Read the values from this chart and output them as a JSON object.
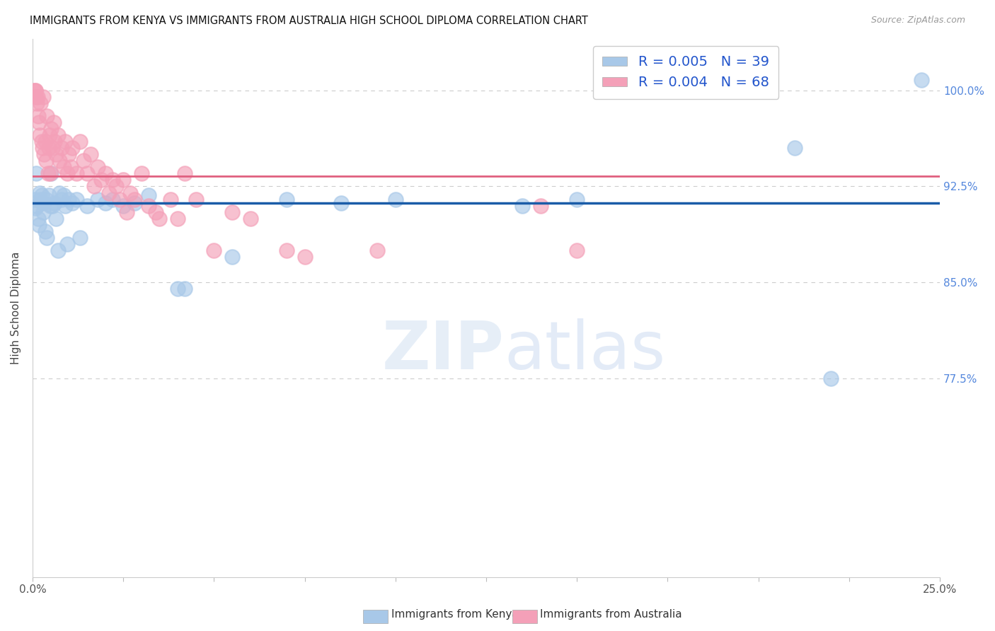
{
  "title": "IMMIGRANTS FROM KENYA VS IMMIGRANTS FROM AUSTRALIA HIGH SCHOOL DIPLOMA CORRELATION CHART",
  "source": "Source: ZipAtlas.com",
  "ylabel": "High School Diploma",
  "right_yticks": [
    77.5,
    85.0,
    92.5,
    100.0
  ],
  "xmin": 0.0,
  "xmax": 25.0,
  "ymin": 62.0,
  "ymax": 104.0,
  "kenya_color": "#a8c8e8",
  "australia_color": "#f4a0b8",
  "kenya_line_color": "#1a5ca8",
  "australia_line_color": "#e06080",
  "kenya_line_y": 91.2,
  "australia_line_y": 93.3,
  "watermark": "ZIPatlas",
  "grid_color": "#cccccc",
  "bg_color": "#ffffff",
  "kenya_points": [
    [
      0.05,
      91.5
    ],
    [
      0.07,
      90.8
    ],
    [
      0.1,
      93.5
    ],
    [
      0.12,
      91.0
    ],
    [
      0.15,
      90.0
    ],
    [
      0.18,
      89.5
    ],
    [
      0.2,
      92.0
    ],
    [
      0.22,
      91.5
    ],
    [
      0.25,
      91.8
    ],
    [
      0.28,
      91.2
    ],
    [
      0.3,
      90.5
    ],
    [
      0.35,
      89.0
    ],
    [
      0.38,
      91.5
    ],
    [
      0.4,
      88.5
    ],
    [
      0.45,
      91.8
    ],
    [
      0.48,
      91.0
    ],
    [
      0.5,
      93.5
    ],
    [
      0.55,
      91.0
    ],
    [
      0.6,
      91.2
    ],
    [
      0.65,
      90.0
    ],
    [
      0.7,
      87.5
    ],
    [
      0.75,
      92.0
    ],
    [
      0.8,
      91.5
    ],
    [
      0.85,
      91.8
    ],
    [
      0.9,
      91.0
    ],
    [
      0.95,
      88.0
    ],
    [
      1.0,
      91.5
    ],
    [
      1.1,
      91.2
    ],
    [
      1.2,
      91.5
    ],
    [
      1.3,
      88.5
    ],
    [
      1.5,
      91.0
    ],
    [
      1.8,
      91.5
    ],
    [
      2.0,
      91.2
    ],
    [
      2.2,
      91.5
    ],
    [
      2.5,
      91.0
    ],
    [
      2.8,
      91.2
    ],
    [
      3.2,
      91.8
    ],
    [
      4.0,
      84.5
    ],
    [
      4.2,
      84.5
    ],
    [
      5.5,
      87.0
    ],
    [
      7.0,
      91.5
    ],
    [
      8.5,
      91.2
    ],
    [
      10.0,
      91.5
    ],
    [
      13.5,
      91.0
    ],
    [
      15.0,
      91.5
    ],
    [
      21.0,
      95.5
    ],
    [
      22.0,
      77.5
    ],
    [
      24.5,
      100.8
    ]
  ],
  "australia_points": [
    [
      0.04,
      100.0
    ],
    [
      0.07,
      100.0
    ],
    [
      0.08,
      100.0
    ],
    [
      0.1,
      99.5
    ],
    [
      0.12,
      99.0
    ],
    [
      0.14,
      99.5
    ],
    [
      0.16,
      98.0
    ],
    [
      0.18,
      97.5
    ],
    [
      0.2,
      96.5
    ],
    [
      0.22,
      99.0
    ],
    [
      0.25,
      96.0
    ],
    [
      0.28,
      95.5
    ],
    [
      0.3,
      99.5
    ],
    [
      0.32,
      95.0
    ],
    [
      0.35,
      96.0
    ],
    [
      0.38,
      94.5
    ],
    [
      0.4,
      98.0
    ],
    [
      0.42,
      93.5
    ],
    [
      0.44,
      95.5
    ],
    [
      0.46,
      96.5
    ],
    [
      0.48,
      93.5
    ],
    [
      0.5,
      97.0
    ],
    [
      0.55,
      95.5
    ],
    [
      0.58,
      97.5
    ],
    [
      0.6,
      96.0
    ],
    [
      0.65,
      95.0
    ],
    [
      0.7,
      96.5
    ],
    [
      0.75,
      94.5
    ],
    [
      0.8,
      95.5
    ],
    [
      0.85,
      94.0
    ],
    [
      0.9,
      96.0
    ],
    [
      0.95,
      93.5
    ],
    [
      1.0,
      95.0
    ],
    [
      1.05,
      94.0
    ],
    [
      1.1,
      95.5
    ],
    [
      1.2,
      93.5
    ],
    [
      1.3,
      96.0
    ],
    [
      1.4,
      94.5
    ],
    [
      1.5,
      93.5
    ],
    [
      1.6,
      95.0
    ],
    [
      1.7,
      92.5
    ],
    [
      1.8,
      94.0
    ],
    [
      1.9,
      93.0
    ],
    [
      2.0,
      93.5
    ],
    [
      2.1,
      92.0
    ],
    [
      2.2,
      93.0
    ],
    [
      2.3,
      92.5
    ],
    [
      2.4,
      91.5
    ],
    [
      2.5,
      93.0
    ],
    [
      2.6,
      90.5
    ],
    [
      2.7,
      92.0
    ],
    [
      2.8,
      91.5
    ],
    [
      3.0,
      93.5
    ],
    [
      3.2,
      91.0
    ],
    [
      3.4,
      90.5
    ],
    [
      3.5,
      90.0
    ],
    [
      3.8,
      91.5
    ],
    [
      4.0,
      90.0
    ],
    [
      4.2,
      93.5
    ],
    [
      4.5,
      91.5
    ],
    [
      5.0,
      87.5
    ],
    [
      5.5,
      90.5
    ],
    [
      6.0,
      90.0
    ],
    [
      7.0,
      87.5
    ],
    [
      7.5,
      87.0
    ],
    [
      9.5,
      87.5
    ],
    [
      14.0,
      91.0
    ],
    [
      15.0,
      87.5
    ]
  ]
}
